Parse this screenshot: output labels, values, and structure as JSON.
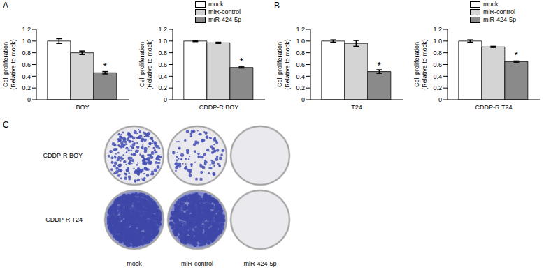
{
  "chart_data": [
    {
      "type": "bar",
      "categories": [
        "BOY"
      ],
      "ylabel": "Cell proliferation\n(Relative to mock)",
      "ylim": [
        0,
        1.2
      ],
      "yticks": [
        0,
        0.2,
        0.4,
        0.6,
        0.8,
        {
          "value": 1,
          "label": "1.0"
        },
        1.2
      ],
      "series": [
        {
          "name": "mock",
          "color": "#ffffff",
          "values": [
            1.0
          ],
          "error": [
            0.04
          ]
        },
        {
          "name": "miR-control",
          "color": "#d4d4d4",
          "values": [
            0.8
          ],
          "error": [
            0.03
          ]
        },
        {
          "name": "miR-424-5p",
          "color": "#8a8a8a",
          "values": [
            0.46
          ],
          "error": [
            0.02
          ]
        }
      ],
      "annotations": [
        {
          "series": "miR-424-5p",
          "category": "BOY",
          "text": "*"
        }
      ]
    },
    {
      "type": "bar",
      "categories": [
        "CDDP-R BOY"
      ],
      "ylabel": "Cell proliferation\n(Relative to mock)",
      "ylim": [
        0,
        1.2
      ],
      "yticks": [
        0,
        0.2,
        0.4,
        0.6,
        0.8,
        {
          "value": 1,
          "label": "1.0"
        },
        1.2
      ],
      "legend": "upper right",
      "series": [
        {
          "name": "mock",
          "color": "#ffffff",
          "values": [
            1.0
          ],
          "error": [
            0.01
          ]
        },
        {
          "name": "miR-control",
          "color": "#d4d4d4",
          "values": [
            0.97
          ],
          "error": [
            0.01
          ]
        },
        {
          "name": "miR-424-5p",
          "color": "#8a8a8a",
          "values": [
            0.55
          ],
          "error": [
            0.01
          ]
        }
      ],
      "annotations": [
        {
          "series": "miR-424-5p",
          "category": "CDDP-R BOY",
          "text": "*"
        }
      ]
    },
    {
      "type": "bar",
      "categories": [
        "T24"
      ],
      "ylabel": "Cell proliferation\n(Relative to mock)",
      "ylim": [
        0,
        1.2
      ],
      "yticks": [
        0,
        0.2,
        0.4,
        0.6,
        0.8,
        {
          "value": 1,
          "label": "1.0"
        },
        1.2
      ],
      "series": [
        {
          "name": "mock",
          "color": "#ffffff",
          "values": [
            1.0
          ],
          "error": [
            0.02
          ]
        },
        {
          "name": "miR-control",
          "color": "#d4d4d4",
          "values": [
            0.96
          ],
          "error": [
            0.05
          ]
        },
        {
          "name": "miR-424-5p",
          "color": "#8a8a8a",
          "values": [
            0.48
          ],
          "error": [
            0.03
          ]
        }
      ],
      "annotations": [
        {
          "series": "miR-424-5p",
          "category": "T24",
          "text": "*"
        }
      ]
    },
    {
      "type": "bar",
      "categories": [
        "CDDP-R T24"
      ],
      "ylabel": "Cell proliferation\n(Relative to mock)",
      "ylim": [
        0,
        1.2
      ],
      "yticks": [
        0,
        0.2,
        0.4,
        0.6,
        0.8,
        {
          "value": 1,
          "label": "1.0"
        },
        1.2
      ],
      "legend": "upper right",
      "series": [
        {
          "name": "mock",
          "color": "#ffffff",
          "values": [
            1.0
          ],
          "error": [
            0.02
          ]
        },
        {
          "name": "miR-control",
          "color": "#d4d4d4",
          "values": [
            0.9
          ],
          "error": [
            0.01
          ]
        },
        {
          "name": "miR-424-5p",
          "color": "#8a8a8a",
          "values": [
            0.65
          ],
          "error": [
            0.01
          ]
        }
      ],
      "annotations": [
        {
          "series": "miR-424-5p",
          "category": "CDDP-R T24",
          "text": "*"
        }
      ]
    }
  ],
  "figure": {
    "panel_labels": [
      "A",
      "B",
      "C"
    ],
    "colony_assay": {
      "rows": [
        "CDDP-R BOY",
        "CDDP-R T24"
      ],
      "columns": [
        "mock",
        "miR-control",
        "miR-424-5p"
      ]
    }
  }
}
